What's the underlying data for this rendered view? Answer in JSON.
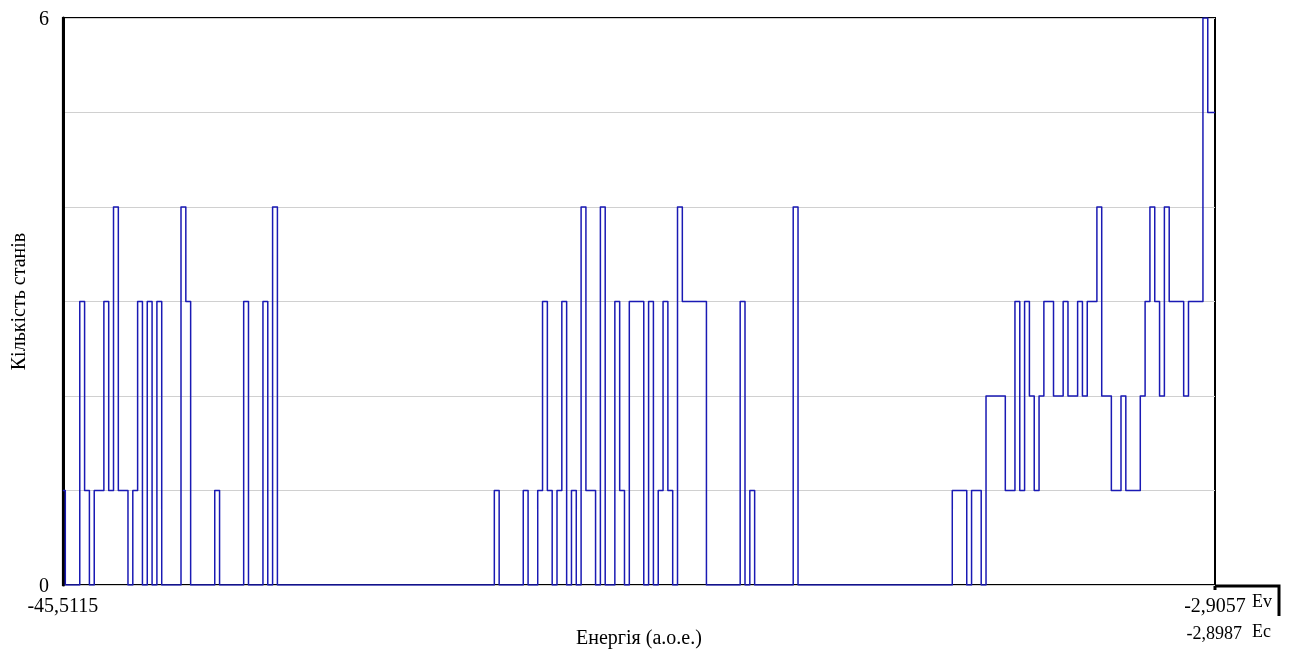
{
  "chart_data": {
    "type": "step",
    "xlabel": "Енергія (а.о.е.)",
    "ylabel": "Кількість станів",
    "categories": [
      "-45,5115",
      null,
      null,
      null,
      null,
      null,
      null,
      null,
      null,
      null,
      null,
      null,
      null,
      null,
      null,
      null,
      null,
      null,
      null,
      null,
      null,
      null,
      null,
      null,
      null,
      null,
      null,
      null,
      null,
      null,
      null,
      null,
      null,
      null,
      null,
      null,
      null,
      null,
      null,
      null,
      null,
      null,
      null,
      null,
      null,
      null,
      null,
      null,
      null,
      null,
      null,
      null,
      null,
      null,
      null,
      null,
      null,
      null,
      null,
      null,
      null,
      null,
      null,
      null,
      null,
      null,
      null,
      null,
      null,
      null,
      null,
      null,
      null,
      null,
      null,
      null,
      null,
      null,
      null,
      null,
      null,
      null,
      null,
      null,
      null,
      null,
      null,
      null,
      null,
      null,
      null,
      null,
      null,
      null,
      null,
      null,
      null,
      null,
      null,
      null,
      null,
      null,
      null,
      null,
      null,
      null,
      null,
      null,
      null,
      null,
      null,
      null,
      null,
      null,
      null,
      null,
      null,
      null,
      null,
      null,
      null,
      null,
      null,
      null,
      null,
      null,
      null,
      null,
      null,
      null,
      null,
      null,
      null,
      null,
      null,
      null,
      null,
      null,
      null,
      null,
      null,
      null,
      null,
      null,
      null,
      null,
      null,
      null,
      null,
      null,
      null,
      null,
      null,
      null,
      null,
      null,
      null,
      null,
      null,
      null,
      null,
      null,
      null,
      null,
      null,
      null,
      null,
      null,
      null,
      null,
      null,
      null,
      null,
      null,
      null,
      null,
      null,
      null,
      null,
      null,
      null,
      null,
      null,
      null,
      null,
      null,
      null,
      null,
      null,
      null,
      null,
      null,
      null,
      null,
      null,
      null,
      null,
      null,
      null,
      null,
      null,
      null,
      null,
      null,
      null,
      null,
      null,
      null,
      null,
      null,
      null,
      null,
      null,
      null,
      null,
      null,
      null,
      null,
      null,
      null,
      null,
      null,
      null,
      null,
      null,
      null,
      null,
      null,
      null,
      null,
      null,
      null,
      null,
      null,
      null,
      null,
      null,
      null,
      null,
      "-2,9057"
    ],
    "values": [
      1,
      0,
      0,
      0,
      3,
      1,
      0,
      1,
      1,
      3,
      1,
      4,
      1,
      1,
      0,
      1,
      3,
      0,
      3,
      0,
      3,
      0,
      0,
      0,
      0,
      4,
      3,
      0,
      0,
      0,
      0,
      0,
      1,
      0,
      0,
      0,
      0,
      0,
      3,
      0,
      0,
      0,
      3,
      0,
      4,
      0,
      0,
      0,
      0,
      0,
      0,
      0,
      0,
      0,
      0,
      0,
      0,
      0,
      0,
      0,
      0,
      0,
      0,
      0,
      0,
      0,
      0,
      0,
      0,
      0,
      0,
      0,
      0,
      0,
      0,
      0,
      0,
      0,
      0,
      0,
      0,
      0,
      0,
      0,
      0,
      0,
      0,
      0,
      0,
      0,
      1,
      0,
      0,
      0,
      0,
      0,
      1,
      0,
      0,
      1,
      3,
      1,
      0,
      1,
      3,
      0,
      1,
      0,
      4,
      1,
      1,
      0,
      4,
      0,
      0,
      3,
      1,
      0,
      3,
      3,
      3,
      0,
      3,
      0,
      1,
      3,
      1,
      0,
      4,
      3,
      3,
      3,
      3,
      3,
      0,
      0,
      0,
      0,
      0,
      0,
      0,
      3,
      0,
      1,
      0,
      0,
      0,
      0,
      0,
      0,
      0,
      0,
      4,
      0,
      0,
      0,
      0,
      0,
      0,
      0,
      0,
      0,
      0,
      0,
      0,
      0,
      0,
      0,
      0,
      0,
      0,
      0,
      0,
      0,
      0,
      0,
      0,
      0,
      0,
      0,
      0,
      0,
      0,
      0,
      0,
      1,
      1,
      1,
      0,
      1,
      1,
      0,
      2,
      2,
      2,
      2,
      1,
      1,
      3,
      1,
      3,
      2,
      1,
      2,
      3,
      3,
      2,
      2,
      3,
      2,
      2,
      3,
      2,
      3,
      3,
      4,
      2,
      2,
      1,
      1,
      2,
      1,
      1,
      1,
      2,
      3,
      4,
      3,
      2,
      4,
      3,
      3,
      3,
      2,
      3,
      3,
      3,
      6,
      5,
      5
    ],
    "color": "#1a1ab4",
    "ylim": [
      0,
      6
    ],
    "yticks": [
      0,
      {
        "value": 1,
        "label": null
      },
      {
        "value": 2,
        "label": null
      },
      {
        "value": 3,
        "label": null
      },
      {
        "value": 4,
        "label": null
      },
      {
        "value": 5,
        "label": null
      },
      6
    ],
    "grid": "y",
    "annotations": [
      "Ev",
      "-2,8987",
      "Ec"
    ]
  }
}
